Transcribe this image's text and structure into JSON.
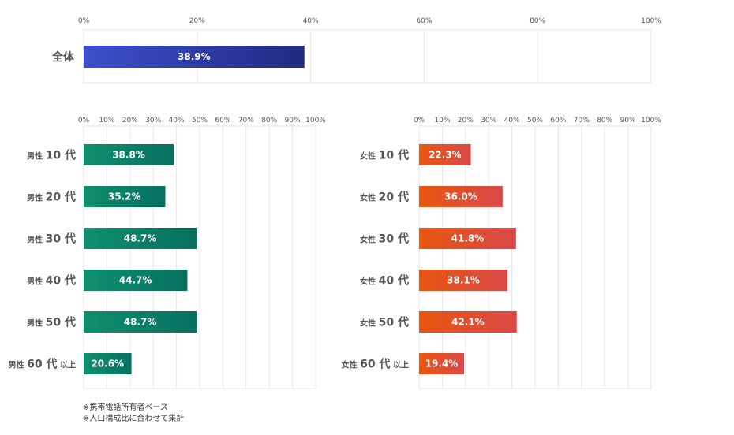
{
  "chart_data": [
    {
      "type": "bar",
      "orientation": "horizontal",
      "categories": [
        "全体"
      ],
      "values": [
        38.9
      ],
      "value_labels": [
        "38.9%"
      ],
      "xlim": [
        0,
        100
      ],
      "ticks": [
        "0%",
        "20%",
        "40%",
        "60%",
        "80%",
        "100%"
      ],
      "tick_values": [
        0,
        20,
        40,
        60,
        80,
        100
      ],
      "bar_color": [
        "#3d4fcc",
        "#1f2a80"
      ]
    },
    {
      "type": "bar",
      "orientation": "horizontal",
      "categories": [
        {
          "prefix": "男性",
          "num": "10",
          "suffix": "代",
          "extra": ""
        },
        {
          "prefix": "男性",
          "num": "20",
          "suffix": "代",
          "extra": ""
        },
        {
          "prefix": "男性",
          "num": "30",
          "suffix": "代",
          "extra": ""
        },
        {
          "prefix": "男性",
          "num": "40",
          "suffix": "代",
          "extra": ""
        },
        {
          "prefix": "男性",
          "num": "50",
          "suffix": "代",
          "extra": ""
        },
        {
          "prefix": "男性",
          "num": "60",
          "suffix": "代",
          "extra": "以上"
        }
      ],
      "values": [
        38.8,
        35.2,
        48.7,
        44.7,
        48.7,
        20.6
      ],
      "value_labels": [
        "38.8%",
        "35.2%",
        "48.7%",
        "44.7%",
        "48.7%",
        "20.6%"
      ],
      "xlim": [
        0,
        100
      ],
      "ticks": [
        "0%",
        "10%",
        "20%",
        "30%",
        "40%",
        "50%",
        "60%",
        "70%",
        "80%",
        "90%",
        "100%"
      ],
      "tick_values": [
        0,
        10,
        20,
        30,
        40,
        50,
        60,
        70,
        80,
        90,
        100
      ],
      "bar_color": [
        "#0f8f6d",
        "#077060"
      ]
    },
    {
      "type": "bar",
      "orientation": "horizontal",
      "categories": [
        {
          "prefix": "女性",
          "num": "10",
          "suffix": "代",
          "extra": ""
        },
        {
          "prefix": "女性",
          "num": "20",
          "suffix": "代",
          "extra": ""
        },
        {
          "prefix": "女性",
          "num": "30",
          "suffix": "代",
          "extra": ""
        },
        {
          "prefix": "女性",
          "num": "40",
          "suffix": "代",
          "extra": ""
        },
        {
          "prefix": "女性",
          "num": "50",
          "suffix": "代",
          "extra": ""
        },
        {
          "prefix": "女性",
          "num": "60",
          "suffix": "代",
          "extra": "以上"
        }
      ],
      "values": [
        22.3,
        36.0,
        41.8,
        38.1,
        42.1,
        19.4
      ],
      "value_labels": [
        "22.3%",
        "36.0%",
        "41.8%",
        "38.1%",
        "42.1%",
        "19.4%"
      ],
      "xlim": [
        0,
        100
      ],
      "ticks": [
        "0%",
        "10%",
        "20%",
        "30%",
        "40%",
        "50%",
        "60%",
        "70%",
        "80%",
        "90%",
        "100%"
      ],
      "tick_values": [
        0,
        10,
        20,
        30,
        40,
        50,
        60,
        70,
        80,
        90,
        100
      ],
      "bar_color": [
        "#e8560f",
        "#d94848"
      ]
    }
  ],
  "notes": [
    "※携帯電話所有者ベース",
    "※人口構成比に合わせて集計"
  ]
}
